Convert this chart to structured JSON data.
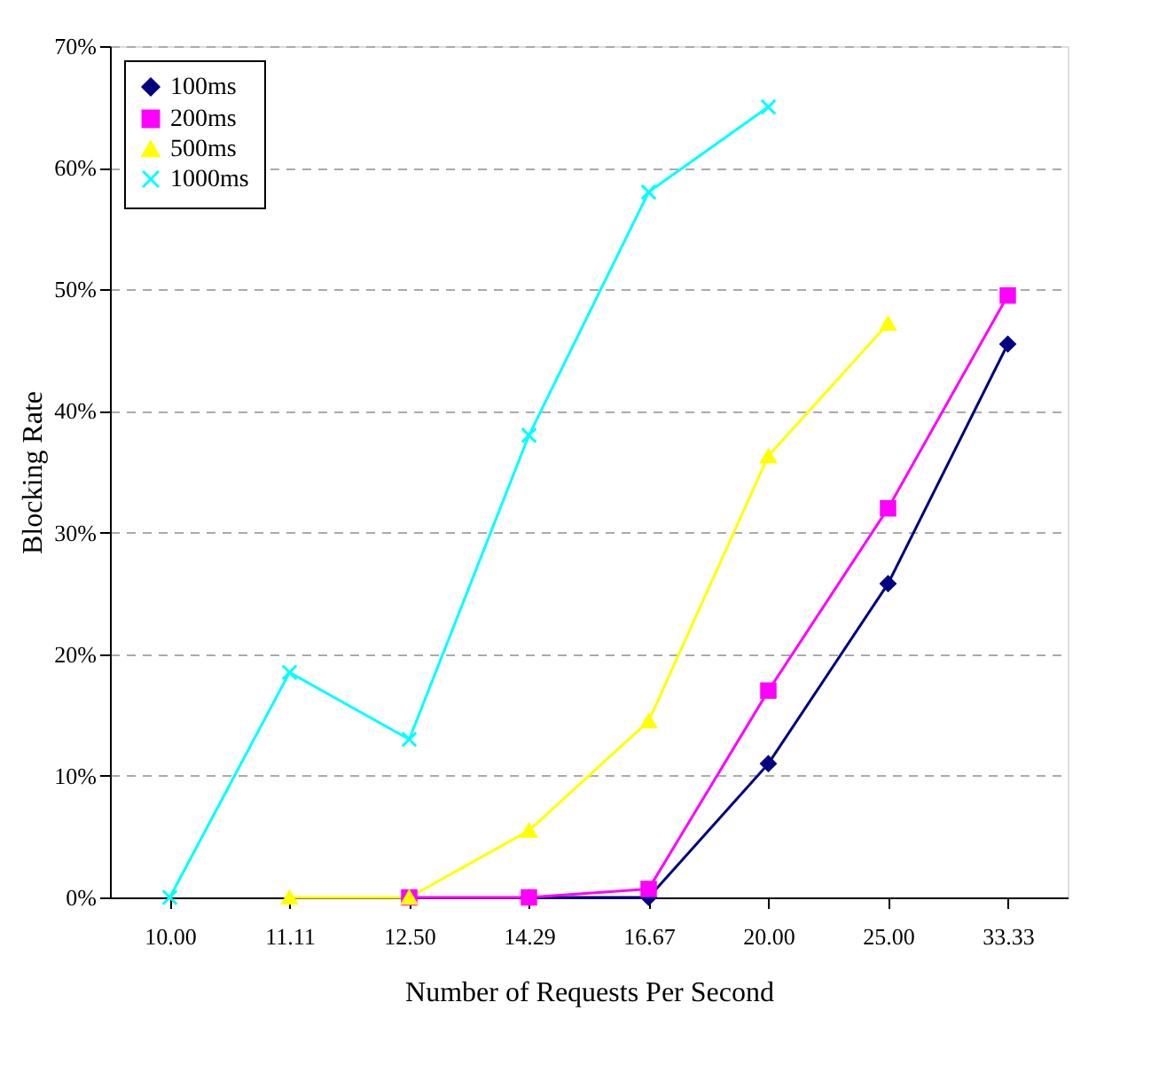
{
  "chart_data": {
    "type": "line",
    "xlabel": "Number of Requests Per Second",
    "ylabel": "Blocking Rate",
    "categories": [
      "10.00",
      "11.11",
      "12.50",
      "14.29",
      "16.67",
      "20.00",
      "25.00",
      "33.33"
    ],
    "series": [
      {
        "name": "100ms",
        "color": "#000080",
        "marker": "diamond",
        "values": [
          null,
          null,
          null,
          0,
          0,
          11,
          25.8,
          45.5
        ]
      },
      {
        "name": "200ms",
        "color": "#ff00ff",
        "marker": "square",
        "values": [
          null,
          null,
          0,
          0,
          0.7,
          17,
          32,
          49.5
        ]
      },
      {
        "name": "500ms",
        "color": "#ffff00",
        "marker": "triangle",
        "values": [
          null,
          0,
          0,
          5.5,
          14.5,
          36.3,
          47.2,
          null
        ]
      },
      {
        "name": "1000ms",
        "color": "#00ffff",
        "marker": "cross",
        "values": [
          0,
          18.5,
          13,
          38,
          58,
          65,
          null,
          null
        ]
      }
    ],
    "ylim": [
      0,
      70
    ],
    "yticks": [
      {
        "value": 0,
        "label": "0%"
      },
      {
        "value": 10,
        "label": "10%"
      },
      {
        "value": 20,
        "label": "20%"
      },
      {
        "value": 30,
        "label": "30%"
      },
      {
        "value": 40,
        "label": "40%"
      },
      {
        "value": 50,
        "label": "50%"
      },
      {
        "value": 60,
        "label": "60%"
      },
      {
        "value": 70,
        "label": "70%"
      }
    ],
    "grid": "y",
    "legend": "top left",
    "line_style": "solid"
  }
}
